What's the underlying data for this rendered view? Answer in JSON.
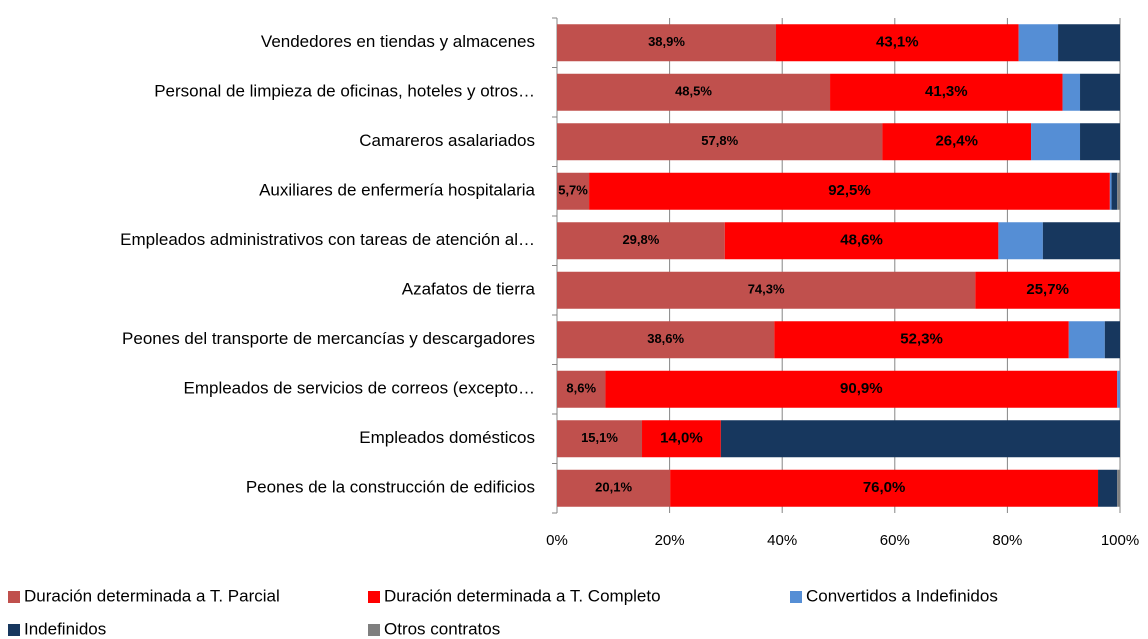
{
  "chart_data": {
    "type": "stacked-bar-horizontal",
    "categories": [
      "Vendedores en tiendas y almacenes",
      "Personal de limpieza de oficinas, hoteles y otros…",
      "Camareros asalariados",
      "Auxiliares de enfermería hospitalaria",
      "Empleados administrativos con tareas de atención al…",
      "Azafatos de tierra",
      "Peones del transporte de mercancías y descargadores",
      "Empleados de servicios de correos (excepto…",
      "Empleados domésticos",
      "Peones de la construcción de edificios"
    ],
    "series": [
      {
        "name": "Duración determinada a T. Parcial",
        "color": "#c0504d",
        "values": [
          38.9,
          48.5,
          57.8,
          5.7,
          29.8,
          74.3,
          38.6,
          8.6,
          15.1,
          20.1
        ],
        "value_labels": [
          "38,9%",
          "48,5%",
          "57,8%",
          "5,7%",
          "29,8%",
          "74,3%",
          "38,6%",
          "8,6%",
          "15,1%",
          "20,1%"
        ]
      },
      {
        "name": "Duración determinada a T. Completo",
        "color": "#ff0000",
        "values": [
          43.1,
          41.3,
          26.4,
          92.5,
          48.6,
          25.7,
          52.3,
          90.9,
          14.0,
          76.0
        ],
        "value_labels": [
          "43,1%",
          "41,3%",
          "26,4%",
          "92,5%",
          "48,6%",
          "25,7%",
          "52,3%",
          "90,9%",
          "14,0%",
          "76,0%"
        ]
      },
      {
        "name": "Convertidos a Indefinidos",
        "color": "#558ed5",
        "values": [
          7.0,
          3.1,
          8.7,
          0.3,
          7.9,
          0,
          6.4,
          0.5,
          0,
          0
        ]
      },
      {
        "name": "Indefinidos",
        "color": "#17375e",
        "values": [
          11.0,
          7.1,
          7.1,
          1.0,
          13.7,
          0,
          2.7,
          0,
          70.9,
          3.4
        ]
      },
      {
        "name": "Otros contratos",
        "color": "#7f7f7f",
        "values": [
          0,
          0,
          0,
          0.5,
          0,
          0,
          0,
          0,
          0,
          0.5
        ]
      }
    ],
    "xlim": [
      0,
      100
    ],
    "xticks": [
      {
        "value": 0,
        "label": "0%"
      },
      {
        "value": 20,
        "label": "20%"
      },
      {
        "value": 40,
        "label": "40%"
      },
      {
        "value": 60,
        "label": "60%"
      },
      {
        "value": 80,
        "label": "80%"
      },
      {
        "value": 100,
        "label": "100%"
      }
    ],
    "grid": true,
    "legend": "bottom"
  }
}
